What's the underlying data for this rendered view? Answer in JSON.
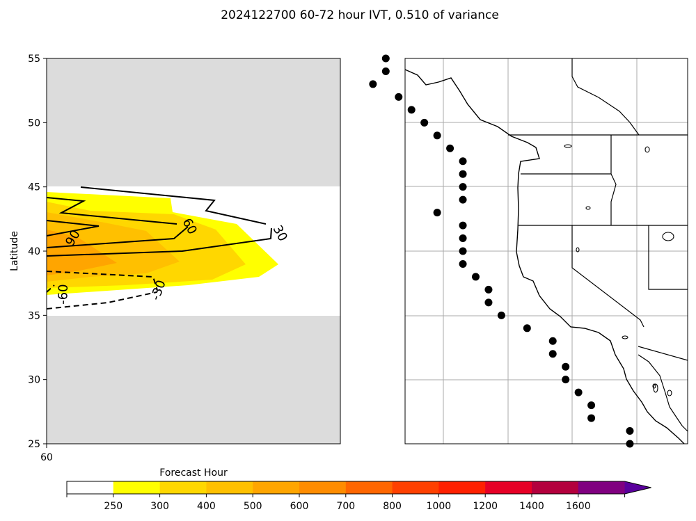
{
  "title": "2024122700 60-72 hour IVT, 0.510 of variance",
  "chart_data": [
    {
      "type": "heatmap",
      "title": "",
      "xlabel": "Forecast Hour",
      "ylabel": "Latitude",
      "x_ticks": [
        "60"
      ],
      "y_ticks": [
        "25",
        "30",
        "35",
        "40",
        "45",
        "50",
        "55"
      ],
      "ylim": [
        25,
        55
      ],
      "masked_color": "#dcdcdc",
      "valid_latitude_range": [
        35,
        45
      ],
      "filled_contours": [
        {
          "level": 250,
          "color": "#ffff00",
          "region": "outer yellow band",
          "lat_range": [
            36.8,
            44.9
          ],
          "max_extent_fraction": 0.79
        },
        {
          "level": 300,
          "color": "#ffd700",
          "region": "inner gold band",
          "lat_range": [
            37.5,
            43.5
          ]
        },
        {
          "level": 400,
          "color": "#ffc000",
          "region": "core",
          "lat_range": [
            38.2,
            42.3
          ]
        },
        {
          "level": 500,
          "color": "#ffa500",
          "region": "innermost core",
          "lat_range": [
            38.6,
            41.6
          ]
        }
      ],
      "line_contours": [
        {
          "label": "30",
          "style": "solid"
        },
        {
          "label": "60",
          "style": "solid"
        },
        {
          "label": "90",
          "style": "solid"
        },
        {
          "label": "-30",
          "style": "dashed"
        },
        {
          "label": "-60",
          "style": "dashed"
        }
      ]
    },
    {
      "type": "map",
      "title": "",
      "region": "US West Coast",
      "lat_range": [
        25,
        55
      ],
      "points": [
        {
          "lat": 55.0,
          "lon": -130.0
        },
        {
          "lat": 54.0,
          "lon": -130.0
        },
        {
          "lat": 53.0,
          "lon": -131.0
        },
        {
          "lat": 52.0,
          "lon": -129.0
        },
        {
          "lat": 51.0,
          "lon": -128.0
        },
        {
          "lat": 50.0,
          "lon": -127.0
        },
        {
          "lat": 49.0,
          "lon": -126.0
        },
        {
          "lat": 48.0,
          "lon": -125.0
        },
        {
          "lat": 47.0,
          "lon": -124.0
        },
        {
          "lat": 46.0,
          "lon": -124.0
        },
        {
          "lat": 45.0,
          "lon": -124.0
        },
        {
          "lat": 44.0,
          "lon": -124.0
        },
        {
          "lat": 43.0,
          "lon": -126.0
        },
        {
          "lat": 42.0,
          "lon": -124.0
        },
        {
          "lat": 41.0,
          "lon": -124.0
        },
        {
          "lat": 40.0,
          "lon": -124.0
        },
        {
          "lat": 39.0,
          "lon": -124.0
        },
        {
          "lat": 38.0,
          "lon": -123.0
        },
        {
          "lat": 37.0,
          "lon": -122.0
        },
        {
          "lat": 36.0,
          "lon": -122.0
        },
        {
          "lat": 35.0,
          "lon": -121.0
        },
        {
          "lat": 34.0,
          "lon": -119.0
        },
        {
          "lat": 33.0,
          "lon": -117.0
        },
        {
          "lat": 32.0,
          "lon": -117.0
        },
        {
          "lat": 31.0,
          "lon": -116.0
        },
        {
          "lat": 30.0,
          "lon": -116.0
        },
        {
          "lat": 29.0,
          "lon": -115.0
        },
        {
          "lat": 28.0,
          "lon": -114.0
        },
        {
          "lat": 27.0,
          "lon": -114.0
        },
        {
          "lat": 26.0,
          "lon": -111.0
        },
        {
          "lat": 25.0,
          "lon": -111.0
        }
      ]
    }
  ],
  "colorbar": {
    "label": "Forecast Hour",
    "levels": [
      {
        "from": 0,
        "to": 250,
        "color": "#ffffff"
      },
      {
        "from": 250,
        "to": 300,
        "color": "#ffff00"
      },
      {
        "from": 300,
        "to": 400,
        "color": "#ffd700"
      },
      {
        "from": 400,
        "to": 500,
        "color": "#ffc000"
      },
      {
        "from": 500,
        "to": 600,
        "color": "#ffa500"
      },
      {
        "from": 600,
        "to": 700,
        "color": "#ff8c00"
      },
      {
        "from": 700,
        "to": 800,
        "color": "#ff6600"
      },
      {
        "from": 800,
        "to": 1000,
        "color": "#ff4000"
      },
      {
        "from": 1000,
        "to": 1200,
        "color": "#ff2000"
      },
      {
        "from": 1200,
        "to": 1400,
        "color": "#e60026"
      },
      {
        "from": 1400,
        "to": 1600,
        "color": "#b3003d"
      },
      {
        "from": 1600,
        "to": null,
        "color": "#800080"
      }
    ],
    "extend_color": "#5a009c",
    "tick_labels": [
      "250",
      "300",
      "400",
      "500",
      "600",
      "700",
      "800",
      "1000",
      "1200",
      "1400",
      "1600"
    ]
  }
}
